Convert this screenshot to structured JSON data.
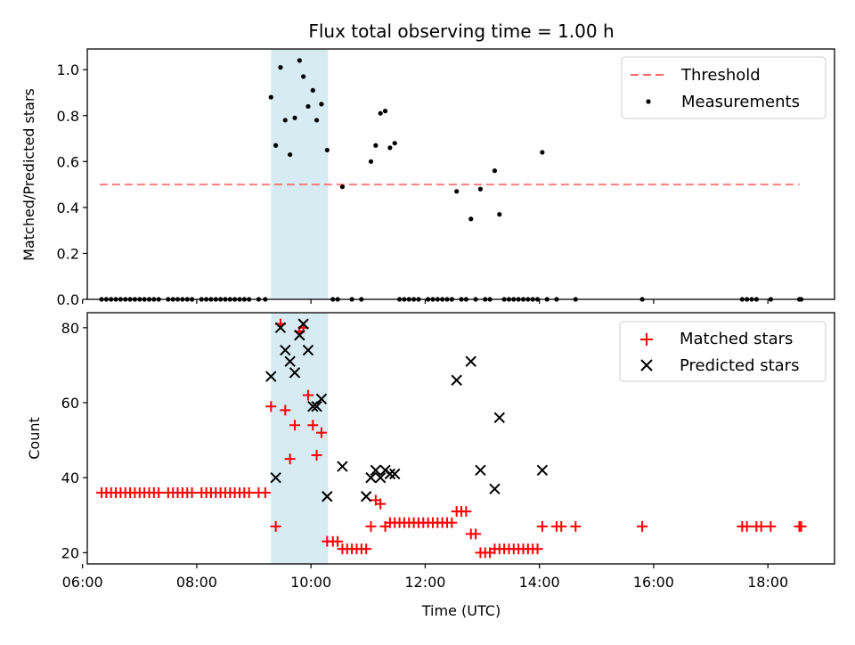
{
  "chart_data": [
    {
      "type": "scatter",
      "title": "Flux total observing time = 1.00 h",
      "xlabel": "",
      "ylabel": "Matched/Predicted stars",
      "ylim": [
        0,
        1.09
      ],
      "xlim": [
        "06:05",
        "19:10"
      ],
      "highlight_span": {
        "start": "09:18",
        "end": "10:18",
        "color": "#add8e6"
      },
      "threshold": {
        "value": 0.5,
        "x_start": "06:18",
        "x_end": "18:33",
        "color": "#ff6666"
      },
      "y_ticks": [
        "0.0",
        "0.2",
        "0.4",
        "0.6",
        "0.8",
        "1.0"
      ],
      "legend": {
        "position": "top-right",
        "entries": [
          "Threshold",
          "Measurements"
        ]
      },
      "series": [
        {
          "name": "Measurements",
          "points": [
            [
              "06:20",
              0
            ],
            [
              "06:25",
              0
            ],
            [
              "06:30",
              0
            ],
            [
              "06:35",
              0
            ],
            [
              "06:40",
              0
            ],
            [
              "06:45",
              0
            ],
            [
              "06:50",
              0
            ],
            [
              "06:55",
              0
            ],
            [
              "07:00",
              0
            ],
            [
              "07:05",
              0
            ],
            [
              "07:10",
              0
            ],
            [
              "07:15",
              0
            ],
            [
              "07:20",
              0
            ],
            [
              "07:30",
              0
            ],
            [
              "07:35",
              0
            ],
            [
              "07:40",
              0
            ],
            [
              "07:45",
              0
            ],
            [
              "07:50",
              0
            ],
            [
              "07:55",
              0
            ],
            [
              "08:05",
              0
            ],
            [
              "08:10",
              0
            ],
            [
              "08:15",
              0
            ],
            [
              "08:20",
              0
            ],
            [
              "08:25",
              0
            ],
            [
              "08:30",
              0
            ],
            [
              "08:35",
              0
            ],
            [
              "08:40",
              0
            ],
            [
              "08:45",
              0
            ],
            [
              "08:50",
              0
            ],
            [
              "08:55",
              0
            ],
            [
              "09:05",
              0
            ],
            [
              "09:12",
              0
            ],
            [
              "09:18",
              0.88
            ],
            [
              "09:23",
              0.67
            ],
            [
              "09:28",
              1.01
            ],
            [
              "09:33",
              0.78
            ],
            [
              "09:38",
              0.63
            ],
            [
              "09:43",
              0.79
            ],
            [
              "09:48",
              1.04
            ],
            [
              "09:52",
              0.97
            ],
            [
              "09:57",
              0.84
            ],
            [
              "10:02",
              0.91
            ],
            [
              "10:06",
              0.78
            ],
            [
              "10:11",
              0.85
            ],
            [
              "10:17",
              0.65
            ],
            [
              "10:23",
              0
            ],
            [
              "10:28",
              0
            ],
            [
              "10:33",
              0.49
            ],
            [
              "10:43",
              0
            ],
            [
              "10:53",
              0
            ],
            [
              "11:03",
              0.6
            ],
            [
              "11:08",
              0.67
            ],
            [
              "11:13",
              0.81
            ],
            [
              "11:18",
              0.82
            ],
            [
              "11:23",
              0.66
            ],
            [
              "11:28",
              0.68
            ],
            [
              "11:33",
              0
            ],
            [
              "11:38",
              0
            ],
            [
              "11:43",
              0
            ],
            [
              "11:48",
              0
            ],
            [
              "11:53",
              0
            ],
            [
              "12:03",
              0
            ],
            [
              "12:08",
              0
            ],
            [
              "12:13",
              0
            ],
            [
              "12:18",
              0
            ],
            [
              "12:23",
              0
            ],
            [
              "12:28",
              0
            ],
            [
              "12:33",
              0.47
            ],
            [
              "12:38",
              0
            ],
            [
              "12:43",
              0
            ],
            [
              "12:48",
              0.35
            ],
            [
              "12:53",
              0
            ],
            [
              "12:58",
              0.48
            ],
            [
              "13:03",
              0
            ],
            [
              "13:08",
              0
            ],
            [
              "13:13",
              0.56
            ],
            [
              "13:18",
              0.37
            ],
            [
              "13:23",
              0
            ],
            [
              "13:28",
              0
            ],
            [
              "13:33",
              0
            ],
            [
              "13:38",
              0
            ],
            [
              "13:43",
              0
            ],
            [
              "13:48",
              0
            ],
            [
              "13:53",
              0
            ],
            [
              "13:58",
              0
            ],
            [
              "14:03",
              0.64
            ],
            [
              "14:08",
              0
            ],
            [
              "14:18",
              0
            ],
            [
              "14:38",
              0
            ],
            [
              "15:48",
              0
            ],
            [
              "17:33",
              0
            ],
            [
              "17:38",
              0
            ],
            [
              "17:43",
              0
            ],
            [
              "17:48",
              0
            ],
            [
              "18:03",
              0
            ],
            [
              "18:33",
              0
            ],
            [
              "18:35",
              0
            ]
          ]
        }
      ]
    },
    {
      "type": "scatter",
      "title": "",
      "xlabel": "Time (UTC)",
      "ylabel": "Count",
      "ylim": [
        17,
        84
      ],
      "xlim": [
        "06:05",
        "19:10"
      ],
      "highlight_span": {
        "start": "09:18",
        "end": "10:18",
        "color": "#add8e6"
      },
      "x_ticks": [
        "06:00",
        "08:00",
        "10:00",
        "12:00",
        "14:00",
        "16:00",
        "18:00"
      ],
      "y_ticks": [
        "20",
        "40",
        "60",
        "80"
      ],
      "legend": {
        "position": "top-right",
        "entries": [
          "Matched stars",
          "Predicted stars"
        ]
      },
      "series": [
        {
          "name": "Matched stars",
          "points": [
            [
              "06:20",
              36
            ],
            [
              "06:25",
              36
            ],
            [
              "06:30",
              36
            ],
            [
              "06:35",
              36
            ],
            [
              "06:40",
              36
            ],
            [
              "06:45",
              36
            ],
            [
              "06:50",
              36
            ],
            [
              "06:55",
              36
            ],
            [
              "07:00",
              36
            ],
            [
              "07:05",
              36
            ],
            [
              "07:10",
              36
            ],
            [
              "07:15",
              36
            ],
            [
              "07:20",
              36
            ],
            [
              "07:30",
              36
            ],
            [
              "07:35",
              36
            ],
            [
              "07:40",
              36
            ],
            [
              "07:45",
              36
            ],
            [
              "07:50",
              36
            ],
            [
              "07:55",
              36
            ],
            [
              "08:05",
              36
            ],
            [
              "08:10",
              36
            ],
            [
              "08:15",
              36
            ],
            [
              "08:20",
              36
            ],
            [
              "08:25",
              36
            ],
            [
              "08:30",
              36
            ],
            [
              "08:35",
              36
            ],
            [
              "08:40",
              36
            ],
            [
              "08:45",
              36
            ],
            [
              "08:50",
              36
            ],
            [
              "08:55",
              36
            ],
            [
              "09:05",
              36
            ],
            [
              "09:12",
              36
            ],
            [
              "09:18",
              59
            ],
            [
              "09:23",
              27
            ],
            [
              "09:28",
              81
            ],
            [
              "09:33",
              58
            ],
            [
              "09:38",
              45
            ],
            [
              "09:43",
              54
            ],
            [
              "09:48",
              79
            ],
            [
              "09:52",
              80
            ],
            [
              "09:57",
              62
            ],
            [
              "10:02",
              54
            ],
            [
              "10:06",
              46
            ],
            [
              "10:11",
              52
            ],
            [
              "10:17",
              23
            ],
            [
              "10:23",
              23
            ],
            [
              "10:28",
              23
            ],
            [
              "10:33",
              21
            ],
            [
              "10:38",
              21
            ],
            [
              "10:43",
              21
            ],
            [
              "10:48",
              21
            ],
            [
              "10:53",
              21
            ],
            [
              "10:58",
              21
            ],
            [
              "11:03",
              27
            ],
            [
              "11:08",
              34
            ],
            [
              "11:13",
              33
            ],
            [
              "11:18",
              27
            ],
            [
              "11:23",
              28
            ],
            [
              "11:28",
              28
            ],
            [
              "11:33",
              28
            ],
            [
              "11:38",
              28
            ],
            [
              "11:43",
              28
            ],
            [
              "11:48",
              28
            ],
            [
              "11:53",
              28
            ],
            [
              "11:58",
              28
            ],
            [
              "12:03",
              28
            ],
            [
              "12:08",
              28
            ],
            [
              "12:13",
              28
            ],
            [
              "12:18",
              28
            ],
            [
              "12:23",
              28
            ],
            [
              "12:28",
              28
            ],
            [
              "12:33",
              31
            ],
            [
              "12:38",
              31
            ],
            [
              "12:43",
              31
            ],
            [
              "12:48",
              25
            ],
            [
              "12:53",
              25
            ],
            [
              "12:58",
              20
            ],
            [
              "13:03",
              20
            ],
            [
              "13:08",
              20
            ],
            [
              "13:13",
              21
            ],
            [
              "13:18",
              21
            ],
            [
              "13:23",
              21
            ],
            [
              "13:28",
              21
            ],
            [
              "13:33",
              21
            ],
            [
              "13:38",
              21
            ],
            [
              "13:43",
              21
            ],
            [
              "13:48",
              21
            ],
            [
              "13:53",
              21
            ],
            [
              "13:58",
              21
            ],
            [
              "14:03",
              27
            ],
            [
              "14:18",
              27
            ],
            [
              "14:23",
              27
            ],
            [
              "14:38",
              27
            ],
            [
              "15:48",
              27
            ],
            [
              "17:33",
              27
            ],
            [
              "17:38",
              27
            ],
            [
              "17:48",
              27
            ],
            [
              "17:53",
              27
            ],
            [
              "18:03",
              27
            ],
            [
              "18:33",
              27
            ],
            [
              "18:35",
              27
            ]
          ]
        },
        {
          "name": "Predicted stars",
          "points": [
            [
              "09:18",
              67
            ],
            [
              "09:23",
              40
            ],
            [
              "09:28",
              80
            ],
            [
              "09:33",
              74
            ],
            [
              "09:38",
              71
            ],
            [
              "09:43",
              68
            ],
            [
              "09:48",
              78
            ],
            [
              "09:52",
              81
            ],
            [
              "09:57",
              74
            ],
            [
              "10:02",
              59
            ],
            [
              "10:06",
              59
            ],
            [
              "10:11",
              61
            ],
            [
              "10:17",
              35
            ],
            [
              "10:33",
              43
            ],
            [
              "10:58",
              35
            ],
            [
              "11:03",
              40
            ],
            [
              "11:08",
              42
            ],
            [
              "11:13",
              40
            ],
            [
              "11:18",
              42
            ],
            [
              "11:23",
              41
            ],
            [
              "11:28",
              41
            ],
            [
              "12:33",
              66
            ],
            [
              "12:48",
              71
            ],
            [
              "12:58",
              42
            ],
            [
              "13:13",
              37
            ],
            [
              "13:18",
              56
            ],
            [
              "14:03",
              42
            ]
          ]
        }
      ]
    }
  ]
}
